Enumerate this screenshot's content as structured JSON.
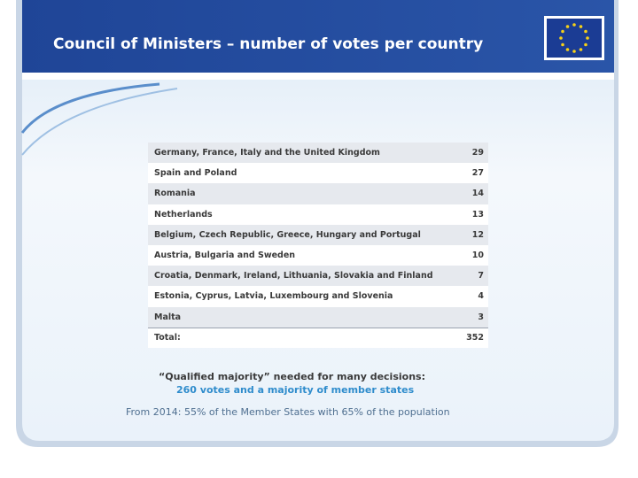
{
  "header": {
    "title": "Council of Ministers – number of votes per country"
  },
  "table": {
    "rows": [
      [
        "Germany, France, Italy and the United Kingdom",
        29
      ],
      [
        "Spain and Poland",
        27
      ],
      [
        "Romania",
        14
      ],
      [
        "Netherlands",
        13
      ],
      [
        "Belgium, Czech Republic, Greece, Hungary and Portugal",
        12
      ],
      [
        "Austria, Bulgaria and Sweden",
        10
      ],
      [
        "Croatia, Denmark, Ireland, Lithuania, Slovakia and Finland",
        7
      ],
      [
        "Estonia, Cyprus, Latvia, Luxembourg and Slovenia",
        4
      ],
      [
        "Malta",
        3
      ]
    ],
    "total": [
      "Total:",
      352
    ]
  },
  "notes": [
    "“Qualified majority” needed for many decisions:",
    "260 votes and a majority of member states",
    "From 2014: 55% of the Member States with 65% of the population"
  ]
}
